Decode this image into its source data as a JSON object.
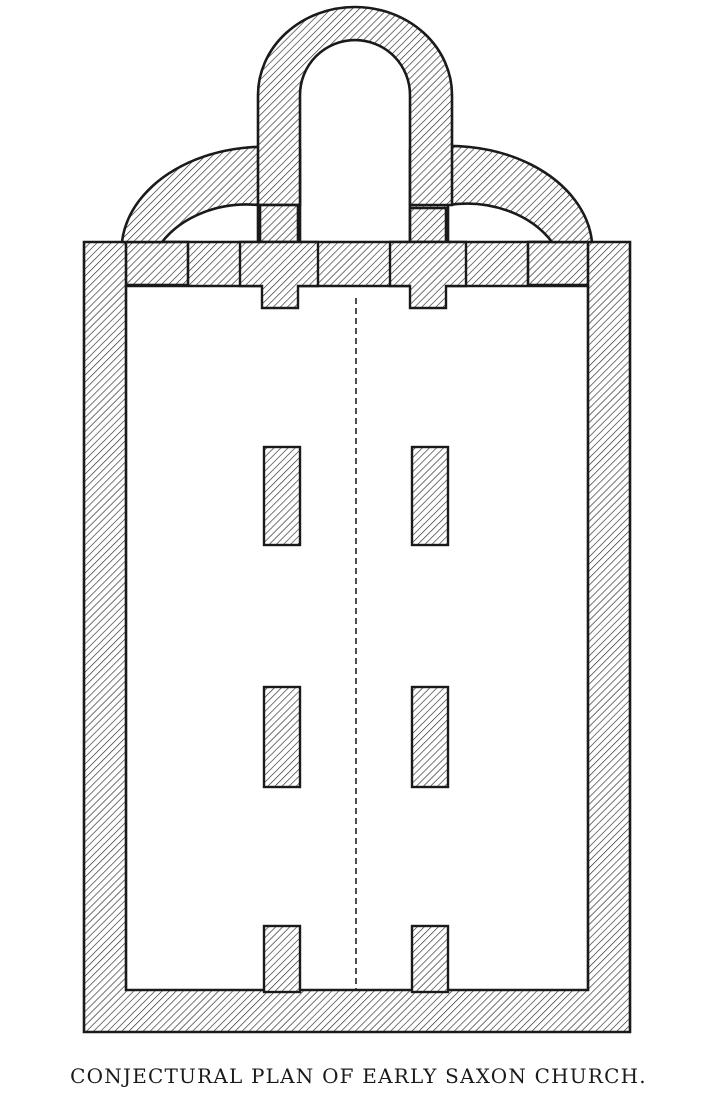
{
  "caption": "CONJECTURAL PLAN OF EARLY SAXON CHURCH.",
  "colors": {
    "ink": "#1a1a1a",
    "paper": "#ffffff"
  }
}
